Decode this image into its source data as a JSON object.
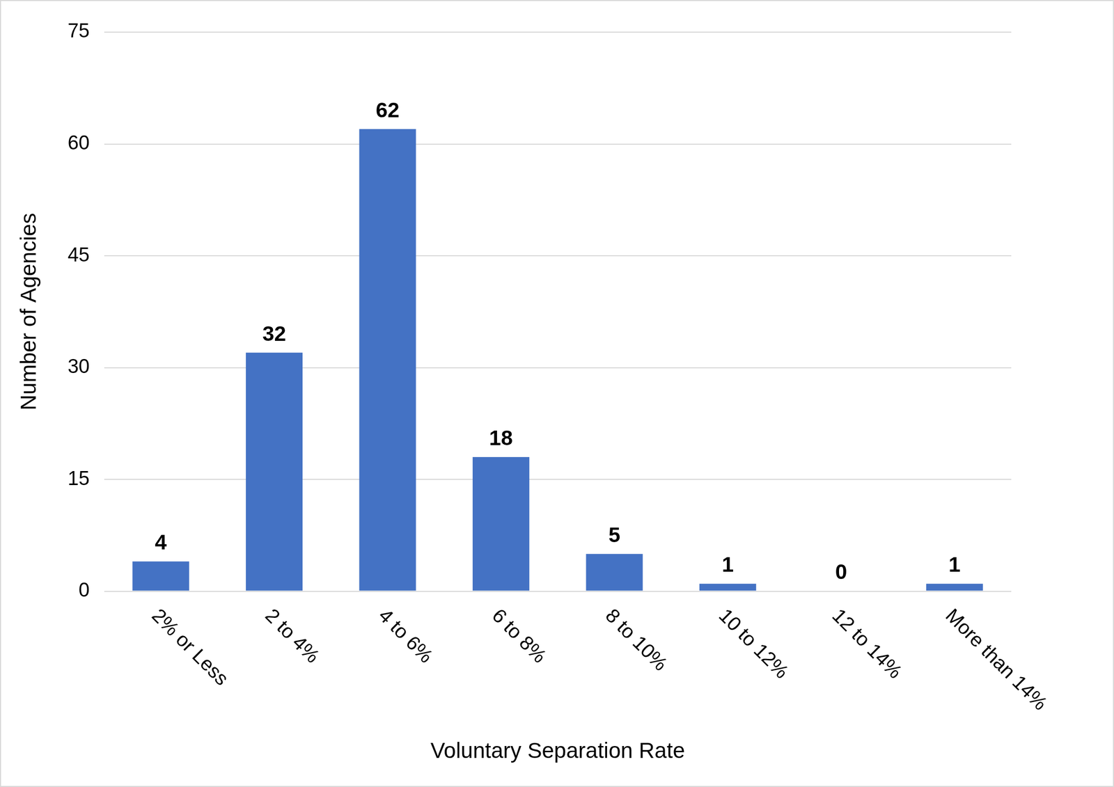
{
  "chart_data": {
    "type": "bar",
    "x_label": "Voluntary Separation Rate",
    "y_label": "Number of Agencies",
    "categories": [
      "2% or Less",
      "2 to 4%",
      "4 to 6%",
      "6 to 8%",
      "8 to 10%",
      "10 to 12%",
      "12 to 14%",
      "More than 14%"
    ],
    "values": [
      4,
      32,
      62,
      18,
      5,
      1,
      0,
      1
    ],
    "color": "#4472c4",
    "ylim": [
      0,
      75
    ],
    "yticks": [
      0,
      15,
      30,
      45,
      60,
      75
    ],
    "grid": true,
    "data_labels": true
  }
}
